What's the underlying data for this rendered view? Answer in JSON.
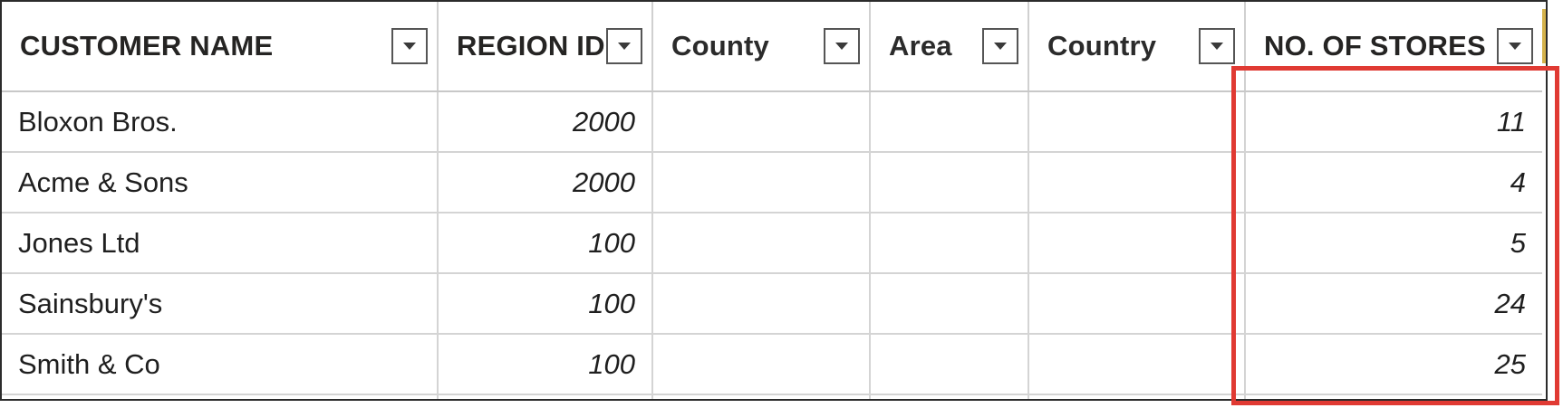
{
  "table": {
    "columns": [
      {
        "label": "CUSTOMER NAME",
        "filter_icon": "chevron-down-icon"
      },
      {
        "label": "REGION ID",
        "filter_icon": "chevron-down-icon"
      },
      {
        "label": "County",
        "filter_icon": "chevron-down-icon"
      },
      {
        "label": "Area",
        "filter_icon": "chevron-down-icon"
      },
      {
        "label": "Country",
        "filter_icon": "chevron-down-icon"
      },
      {
        "label": "NO. OF STORES",
        "filter_icon": "chevron-down-icon"
      }
    ],
    "rows": [
      {
        "customer_name": "Bloxon Bros.",
        "region_id": "2000",
        "county": "",
        "area": "",
        "country": "",
        "no_of_stores": "11"
      },
      {
        "customer_name": "Acme & Sons",
        "region_id": "2000",
        "county": "",
        "area": "",
        "country": "",
        "no_of_stores": "4"
      },
      {
        "customer_name": "Jones Ltd",
        "region_id": "100",
        "county": "",
        "area": "",
        "country": "",
        "no_of_stores": "5"
      },
      {
        "customer_name": "Sainsbury's",
        "region_id": "100",
        "county": "",
        "area": "",
        "country": "",
        "no_of_stores": "24"
      },
      {
        "customer_name": "Smith & Co",
        "region_id": "100",
        "county": "",
        "area": "",
        "country": "",
        "no_of_stores": "25"
      }
    ]
  },
  "highlight": {
    "target_column": "NO. OF STORES",
    "color": "#e03a33"
  },
  "colors": {
    "grid_line": "#d4d4d4",
    "text": "#1f1f1f",
    "header_text": "#252423"
  }
}
